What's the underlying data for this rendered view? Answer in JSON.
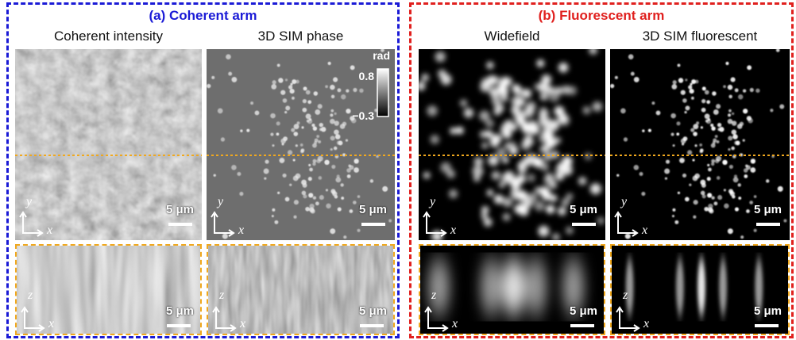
{
  "panels": [
    {
      "title": "(a) Coherent arm",
      "images": [
        {
          "label": "Coherent intensity",
          "xy_scale_bar": "5 μm",
          "xy_axes": [
            "y",
            "x"
          ],
          "xz_scale_bar": "5 μm",
          "xz_axes": [
            "z",
            "x"
          ]
        },
        {
          "label": "3D SIM phase",
          "xy_scale_bar": "5 μm",
          "xy_axes": [
            "y",
            "x"
          ],
          "xz_scale_bar": "5 μm",
          "xz_axes": [
            "z",
            "x"
          ]
        }
      ]
    },
    {
      "title": "(b) Fluorescent arm",
      "images": [
        {
          "label": "Widefield",
          "xy_scale_bar": "5 μm",
          "xy_axes": [
            "y",
            "x"
          ],
          "xz_scale_bar": "5 μm",
          "xz_axes": [
            "z",
            "x"
          ]
        },
        {
          "label": "3D SIM fluorescent",
          "xy_scale_bar": "5 μm",
          "xy_axes": [
            "y",
            "x"
          ],
          "xz_scale_bar": "5 μm",
          "xz_axes": [
            "z",
            "x"
          ]
        }
      ]
    }
  ],
  "colorbar": {
    "unit": "rad",
    "max": "0.8",
    "min": "−0.3"
  }
}
